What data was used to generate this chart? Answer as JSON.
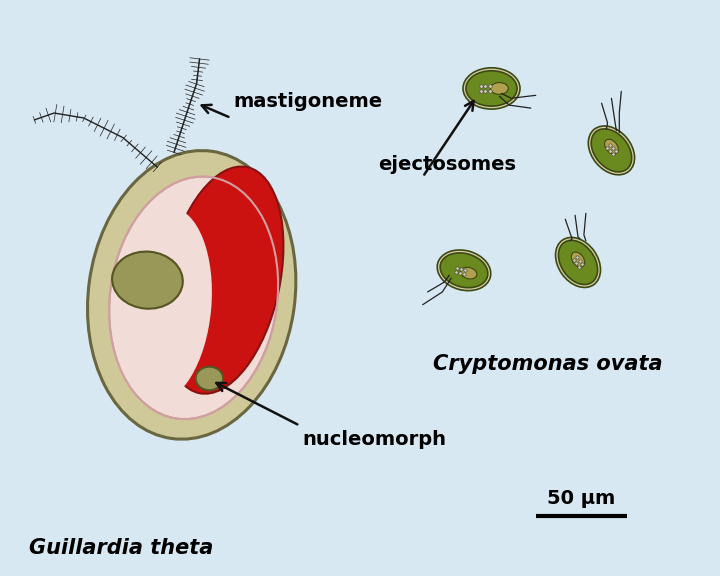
{
  "background_color": "#d8e8f2",
  "guillardia_label": "Guillardia theta",
  "cryptomonas_label": "Cryptomonas ovata",
  "mastigoneme_label": "mastigoneme",
  "nucleomorph_label": "nucleomorph",
  "ejectosomes_label": "ejectosomes",
  "scale_label": "50 μm",
  "outer_cell_color": "#cfc898",
  "outer_cell_edge": "#6a6640",
  "inner_periplast_color": "#f2dcd8",
  "inner_periplast_edge": "#d0a0a0",
  "chloroplast_color": "#cc1111",
  "chloroplast_edge": "#881111",
  "nucleus_color": "#9a9858",
  "nucleus_edge": "#555522",
  "nucleomorph_color": "#9a9858",
  "nucleomorph_edge": "#555522",
  "cryptomonas_outline_color": "#d8ccaa",
  "cryptomonas_body_color": "#6a8a20",
  "cryptomonas_edge_color": "#3a4a10",
  "cryptomonas_nucleus_color": "#b0a050",
  "flagella_color": "#222222",
  "arrow_color": "#111111"
}
